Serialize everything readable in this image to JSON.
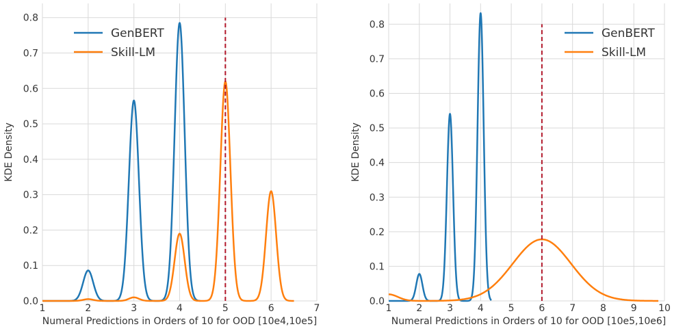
{
  "chart_data": [
    {
      "type": "line",
      "title": "",
      "xlabel": "Numeral Predictions in Orders of 10 for OOD [10e4,10e5]",
      "ylabel": "KDE Density",
      "xlim": [
        1,
        7
      ],
      "ylim": [
        0,
        0.84
      ],
      "xticks": [
        1,
        2,
        3,
        4,
        5,
        6,
        7
      ],
      "yticks": [
        0.0,
        0.1,
        0.2,
        0.3,
        0.4,
        0.5,
        0.6,
        0.7,
        0.8
      ],
      "xtick_labels": [
        "1",
        "2",
        "3",
        "4",
        "5",
        "6",
        "7"
      ],
      "ytick_labels": [
        "0.0",
        "0.1",
        "0.2",
        "0.3",
        "0.4",
        "0.5",
        "0.6",
        "0.7",
        "0.8"
      ],
      "grid": true,
      "legend_position": "top-left",
      "reference_line": {
        "x": 5,
        "y_top": 0.8,
        "color": "#b2182b",
        "style": "dashed"
      },
      "series": [
        {
          "name": "GenBERT",
          "color": "#1f77b4",
          "x_range": [
            1,
            4.45
          ],
          "peaks": [
            {
              "center": 2,
              "height": 0.086,
              "sigma": 0.11
            },
            {
              "center": 3,
              "height": 0.566,
              "sigma": 0.11
            },
            {
              "center": 4,
              "height": 0.785,
              "sigma": 0.11
            }
          ]
        },
        {
          "name": "Skill-LM",
          "color": "#ff7f0e",
          "x_range": [
            1,
            6.5
          ],
          "peaks": [
            {
              "center": 2,
              "height": 0.005,
              "sigma": 0.11
            },
            {
              "center": 3,
              "height": 0.01,
              "sigma": 0.11
            },
            {
              "center": 4,
              "height": 0.19,
              "sigma": 0.11
            },
            {
              "center": 5,
              "height": 0.62,
              "sigma": 0.11
            },
            {
              "center": 6,
              "height": 0.31,
              "sigma": 0.11
            }
          ]
        }
      ]
    },
    {
      "type": "line",
      "title": "",
      "xlabel": "Numeral Predictions in Orders of 10 for OOD [10e5,10e6]",
      "ylabel": "KDE Density",
      "xlim": [
        1,
        10
      ],
      "ylim": [
        0,
        0.86
      ],
      "xticks": [
        1,
        2,
        3,
        4,
        5,
        6,
        7,
        8,
        9,
        10
      ],
      "yticks": [
        0.0,
        0.1,
        0.2,
        0.3,
        0.4,
        0.5,
        0.6,
        0.7,
        0.8
      ],
      "xtick_labels": [
        "1",
        "2",
        "3",
        "4",
        "5",
        "6",
        "7",
        "8",
        "9",
        "10"
      ],
      "ytick_labels": [
        "0.0",
        "0.1",
        "0.2",
        "0.3",
        "0.4",
        "0.5",
        "0.6",
        "0.7",
        "0.8"
      ],
      "grid": true,
      "legend_position": "top-right",
      "reference_line": {
        "x": 6,
        "y_top": 0.8,
        "color": "#b2182b",
        "style": "dashed"
      },
      "series": [
        {
          "name": "GenBERT",
          "color": "#1f77b4",
          "x_range": [
            1,
            4.35
          ],
          "peaks": [
            {
              "center": 2,
              "height": 0.078,
              "sigma": 0.1
            },
            {
              "center": 3,
              "height": 0.541,
              "sigma": 0.1
            },
            {
              "center": 4,
              "height": 0.832,
              "sigma": 0.1
            }
          ]
        },
        {
          "name": "Skill-LM",
          "color": "#ff7f0e",
          "x_range": [
            1,
            9.8
          ],
          "peaks": [
            {
              "center": 6,
              "height": 0.178,
              "sigma": 0.95
            },
            {
              "center": 1,
              "height": 0.019,
              "sigma": 0.3
            }
          ]
        }
      ]
    }
  ]
}
